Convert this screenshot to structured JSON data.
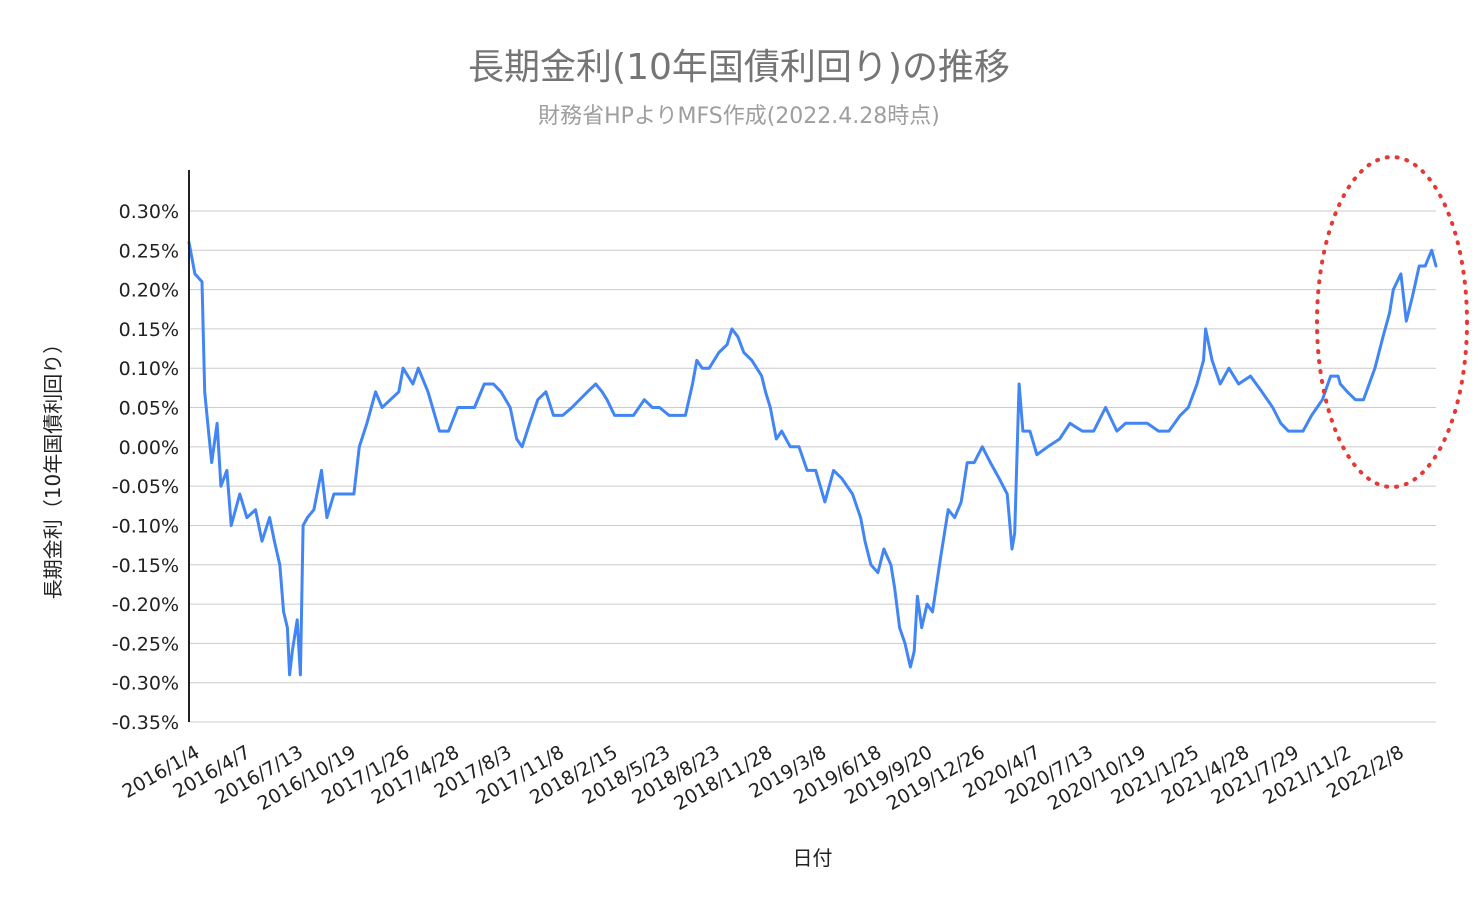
{
  "chart_data": {
    "type": "line",
    "title": "長期金利(10年国債利回り)の推移",
    "subtitle": "財務省HPよりMFS作成(2022.4.28時点)",
    "xlabel": "日付",
    "ylabel": "長期金利（10年国債利回り）",
    "ylim": [
      -0.35,
      0.3
    ],
    "y_ticks": [
      0.3,
      0.25,
      0.2,
      0.15,
      0.1,
      0.05,
      0.0,
      -0.05,
      -0.1,
      -0.15,
      -0.2,
      -0.25,
      -0.3,
      -0.35
    ],
    "y_tick_labels": [
      "0.30%",
      "0.25%",
      "0.20%",
      "0.15%",
      "0.10%",
      "0.05%",
      "0.00%",
      "-0.05%",
      "-0.10%",
      "-0.15%",
      "-0.20%",
      "-0.25%",
      "-0.30%",
      "-0.35%"
    ],
    "x_tick_labels": [
      "2016/1/4",
      "2016/4/7",
      "2016/7/13",
      "2016/10/19",
      "2017/1/26",
      "2017/4/28",
      "2017/8/3",
      "2017/11/8",
      "2018/2/15",
      "2018/5/23",
      "2018/8/23",
      "2018/11/28",
      "2019/3/8",
      "2019/6/18",
      "2019/9/20",
      "2019/12/26",
      "2020/4/7",
      "2020/7/13",
      "2020/10/19",
      "2021/1/25",
      "2021/4/28",
      "2021/7/29",
      "2021/11/2",
      "2022/2/8"
    ],
    "grid": true,
    "line_color": "#4285f4",
    "highlight_color": "#e53935",
    "annotation": "red dotted ellipse around 2021/11–2022/4",
    "series": [
      {
        "name": "",
        "points": [
          [
            "2016/1/4",
            0.26
          ],
          [
            "2016/1/15",
            0.22
          ],
          [
            "2016/1/28",
            0.21
          ],
          [
            "2016/2/2",
            0.07
          ],
          [
            "2016/2/9",
            0.02
          ],
          [
            "2016/2/15",
            -0.02
          ],
          [
            "2016/2/25",
            0.03
          ],
          [
            "2016/3/3",
            -0.05
          ],
          [
            "2016/3/14",
            -0.03
          ],
          [
            "2016/3/22",
            -0.1
          ],
          [
            "2016/4/7",
            -0.06
          ],
          [
            "2016/4/20",
            -0.09
          ],
          [
            "2016/5/6",
            -0.08
          ],
          [
            "2016/5/18",
            -0.12
          ],
          [
            "2016/6/1",
            -0.09
          ],
          [
            "2016/6/10",
            -0.12
          ],
          [
            "2016/6/20",
            -0.15
          ],
          [
            "2016/6/27",
            -0.21
          ],
          [
            "2016/7/4",
            -0.23
          ],
          [
            "2016/7/8",
            -0.29
          ],
          [
            "2016/7/13",
            -0.26
          ],
          [
            "2016/7/22",
            -0.22
          ],
          [
            "2016/7/28",
            -0.29
          ],
          [
            "2016/8/2",
            -0.1
          ],
          [
            "2016/8/10",
            -0.09
          ],
          [
            "2016/8/22",
            -0.08
          ],
          [
            "2016/9/5",
            -0.03
          ],
          [
            "2016/9/15",
            -0.09
          ],
          [
            "2016/9/28",
            -0.06
          ],
          [
            "2016/10/19",
            -0.06
          ],
          [
            "2016/11/4",
            -0.06
          ],
          [
            "2016/11/14",
            0.0
          ],
          [
            "2016/11/28",
            0.03
          ],
          [
            "2016/12/14",
            0.07
          ],
          [
            "2016/12/26",
            0.05
          ],
          [
            "2017/1/26",
            0.07
          ],
          [
            "2017/2/3",
            0.1
          ],
          [
            "2017/2/21",
            0.08
          ],
          [
            "2017/3/3",
            0.1
          ],
          [
            "2017/3/21",
            0.07
          ],
          [
            "2017/4/11",
            0.02
          ],
          [
            "2017/4/28",
            0.02
          ],
          [
            "2017/5/15",
            0.05
          ],
          [
            "2017/6/1",
            0.05
          ],
          [
            "2017/6/15",
            0.05
          ],
          [
            "2017/7/3",
            0.08
          ],
          [
            "2017/7/20",
            0.08
          ],
          [
            "2017/8/3",
            0.07
          ],
          [
            "2017/8/20",
            0.05
          ],
          [
            "2017/9/1",
            0.01
          ],
          [
            "2017/9/11",
            0.0
          ],
          [
            "2017/9/25",
            0.03
          ],
          [
            "2017/10/10",
            0.06
          ],
          [
            "2017/10/25",
            0.07
          ],
          [
            "2017/11/8",
            0.04
          ],
          [
            "2017/11/25",
            0.04
          ],
          [
            "2017/12/12",
            0.05
          ],
          [
            "2018/1/10",
            0.07
          ],
          [
            "2018/1/25",
            0.08
          ],
          [
            "2018/2/6",
            0.07
          ],
          [
            "2018/2/15",
            0.06
          ],
          [
            "2018/3/1",
            0.04
          ],
          [
            "2018/3/20",
            0.04
          ],
          [
            "2018/4/5",
            0.04
          ],
          [
            "2018/4/25",
            0.06
          ],
          [
            "2018/5/10",
            0.05
          ],
          [
            "2018/5/23",
            0.05
          ],
          [
            "2018/6/10",
            0.04
          ],
          [
            "2018/6/25",
            0.04
          ],
          [
            "2018/7/10",
            0.04
          ],
          [
            "2018/7/23",
            0.08
          ],
          [
            "2018/7/31",
            0.11
          ],
          [
            "2018/8/10",
            0.1
          ],
          [
            "2018/8/23",
            0.1
          ],
          [
            "2018/9/10",
            0.12
          ],
          [
            "2018/9/25",
            0.13
          ],
          [
            "2018/10/4",
            0.15
          ],
          [
            "2018/10/15",
            0.14
          ],
          [
            "2018/10/26",
            0.12
          ],
          [
            "2018/11/10",
            0.11
          ],
          [
            "2018/11/28",
            0.09
          ],
          [
            "2018/12/5",
            0.07
          ],
          [
            "2018/12/14",
            0.05
          ],
          [
            "2018/12/25",
            0.01
          ],
          [
            "2019/1/4",
            0.02
          ],
          [
            "2019/1/20",
            0.0
          ],
          [
            "2019/2/5",
            0.0
          ],
          [
            "2019/2/20",
            -0.03
          ],
          [
            "2019/3/8",
            -0.03
          ],
          [
            "2019/3/25",
            -0.07
          ],
          [
            "2019/4/10",
            -0.03
          ],
          [
            "2019/4/25",
            -0.04
          ],
          [
            "2019/5/15",
            -0.06
          ],
          [
            "2019/5/30",
            -0.09
          ],
          [
            "2019/6/7",
            -0.12
          ],
          [
            "2019/6/18",
            -0.15
          ],
          [
            "2019/7/1",
            -0.16
          ],
          [
            "2019/7/12",
            -0.13
          ],
          [
            "2019/7/25",
            -0.15
          ],
          [
            "2019/8/1",
            -0.18
          ],
          [
            "2019/8/10",
            -0.23
          ],
          [
            "2019/8/20",
            -0.25
          ],
          [
            "2019/8/30",
            -0.28
          ],
          [
            "2019/9/6",
            -0.26
          ],
          [
            "2019/9/12",
            -0.19
          ],
          [
            "2019/9/20",
            -0.23
          ],
          [
            "2019/9/30",
            -0.2
          ],
          [
            "2019/10/10",
            -0.21
          ],
          [
            "2019/10/25",
            -0.14
          ],
          [
            "2019/11/8",
            -0.08
          ],
          [
            "2019/11/20",
            -0.09
          ],
          [
            "2019/12/2",
            -0.07
          ],
          [
            "2019/12/13",
            -0.02
          ],
          [
            "2019/12/26",
            -0.02
          ],
          [
            "2020/1/10",
            0.0
          ],
          [
            "2020/1/25",
            -0.02
          ],
          [
            "2020/2/10",
            -0.04
          ],
          [
            "2020/2/25",
            -0.06
          ],
          [
            "2020/3/5",
            -0.13
          ],
          [
            "2020/3/10",
            -0.11
          ],
          [
            "2020/3/18",
            0.08
          ],
          [
            "2020/3/25",
            0.02
          ],
          [
            "2020/4/7",
            0.02
          ],
          [
            "2020/4/20",
            -0.01
          ],
          [
            "2020/5/10",
            0.0
          ],
          [
            "2020/6/1",
            0.01
          ],
          [
            "2020/6/20",
            0.03
          ],
          [
            "2020/7/13",
            0.02
          ],
          [
            "2020/8/3",
            0.02
          ],
          [
            "2020/8/25",
            0.05
          ],
          [
            "2020/9/15",
            0.02
          ],
          [
            "2020/10/1",
            0.03
          ],
          [
            "2020/10/19",
            0.03
          ],
          [
            "2020/11/10",
            0.03
          ],
          [
            "2020/12/1",
            0.02
          ],
          [
            "2020/12/20",
            0.02
          ],
          [
            "2021/1/10",
            0.04
          ],
          [
            "2021/1/25",
            0.05
          ],
          [
            "2021/2/10",
            0.08
          ],
          [
            "2021/2/22",
            0.11
          ],
          [
            "2021/2/26",
            0.15
          ],
          [
            "2021/3/10",
            0.11
          ],
          [
            "2021/3/25",
            0.08
          ],
          [
            "2021/4/10",
            0.1
          ],
          [
            "2021/4/28",
            0.08
          ],
          [
            "2021/5/20",
            0.09
          ],
          [
            "2021/6/10",
            0.07
          ],
          [
            "2021/6/30",
            0.05
          ],
          [
            "2021/7/15",
            0.03
          ],
          [
            "2021/7/29",
            0.02
          ],
          [
            "2021/8/10",
            0.02
          ],
          [
            "2021/8/25",
            0.02
          ],
          [
            "2021/9/10",
            0.04
          ],
          [
            "2021/9/30",
            0.06
          ],
          [
            "2021/10/15",
            0.09
          ],
          [
            "2021/10/29",
            0.09
          ],
          [
            "2021/11/2",
            0.08
          ],
          [
            "2021/11/15",
            0.07
          ],
          [
            "2021/11/30",
            0.06
          ],
          [
            "2021/12/15",
            0.06
          ],
          [
            "2022/1/5",
            0.1
          ],
          [
            "2022/1/20",
            0.14
          ],
          [
            "2022/2/1",
            0.17
          ],
          [
            "2022/2/8",
            0.2
          ],
          [
            "2022/2/22",
            0.22
          ],
          [
            "2022/3/4",
            0.16
          ],
          [
            "2022/3/15",
            0.19
          ],
          [
            "2022/3/28",
            0.23
          ],
          [
            "2022/4/8",
            0.23
          ],
          [
            "2022/4/20",
            0.25
          ],
          [
            "2022/4/28",
            0.23
          ]
        ]
      }
    ]
  }
}
